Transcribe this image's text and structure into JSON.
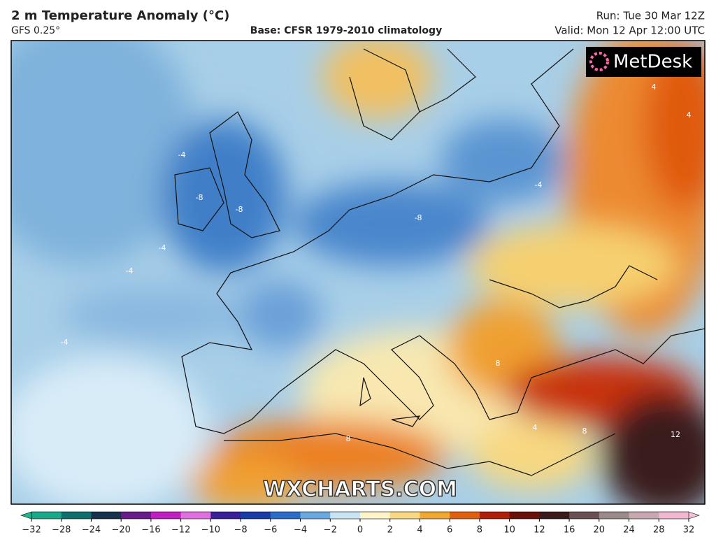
{
  "header": {
    "title": "2 m Temperature Anomaly (°C)",
    "model": "GFS 0.25°",
    "base": "Base: CFSR 1979-2010 climatology",
    "run": "Run: Tue 30 Mar 12Z",
    "valid": "Valid: Mon 12 Apr 12:00 UTC"
  },
  "logo": "MetDesk",
  "watermark": "WXCHARTS.COM",
  "contour_labels": [
    -4,
    -8,
    -8,
    -4,
    -4,
    -8,
    -4,
    -4,
    4,
    4,
    8,
    8,
    8,
    4,
    12
  ],
  "colorbar": {
    "ticks": [
      {
        "value": -32,
        "label": "−32"
      },
      {
        "value": -28,
        "label": "−28"
      },
      {
        "value": -24,
        "label": "−24"
      },
      {
        "value": -20,
        "label": "−20"
      },
      {
        "value": -16,
        "label": "−16"
      },
      {
        "value": -12,
        "label": "−12"
      },
      {
        "value": -10,
        "label": "−10"
      },
      {
        "value": -8,
        "label": "−8"
      },
      {
        "value": -6,
        "label": "−6"
      },
      {
        "value": -4,
        "label": "−4"
      },
      {
        "value": -2,
        "label": "−2"
      },
      0,
      2,
      4,
      6,
      8,
      10,
      12,
      16,
      20,
      24,
      28,
      32
    ],
    "colors": [
      "#1aa88a",
      "#0f6e6e",
      "#16324e",
      "#6a1b8a",
      "#c020c0",
      "#e070e0",
      "#3a1e9a",
      "#1a3ca8",
      "#2a6cc8",
      "#6aa8e0",
      "#c8e4f4",
      "#fff4c8",
      "#f8d880",
      "#f0a830",
      "#e06010",
      "#b02008",
      "#6a1008",
      "#3a1a1a",
      "#6a5050",
      "#9a8a8a",
      "#c8a8b0",
      "#f0b8d0"
    ],
    "under_color": "#1ab88a",
    "over_color": "#f4c0d8"
  }
}
